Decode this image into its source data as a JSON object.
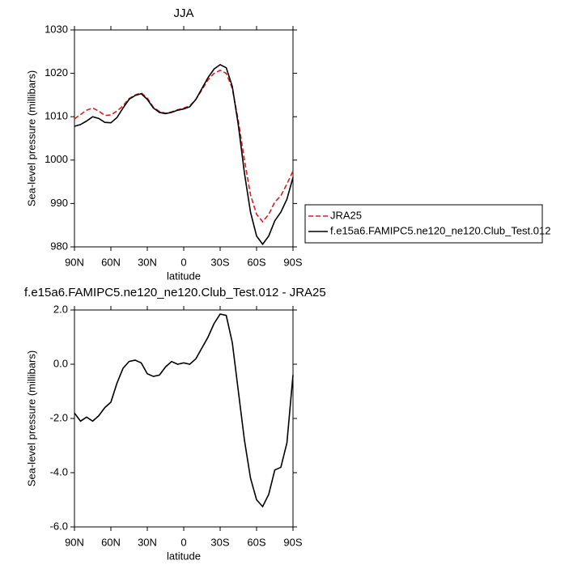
{
  "chart_data": [
    {
      "type": "line",
      "title": "JJA",
      "xlabel": "latitude",
      "ylabel": "Sea-level pressure (millibars)",
      "x": [
        90,
        85,
        80,
        75,
        70,
        65,
        60,
        55,
        50,
        45,
        40,
        35,
        30,
        25,
        20,
        15,
        10,
        5,
        0,
        -5,
        -10,
        -15,
        -20,
        -25,
        -30,
        -35,
        -40,
        -45,
        -50,
        -55,
        -60,
        -65,
        -70,
        -75,
        -80,
        -85,
        -90
      ],
      "xlim": [
        90,
        -90
      ],
      "xticks": [
        {
          "value": 90,
          "label": "90N"
        },
        {
          "value": 60,
          "label": "60N"
        },
        {
          "value": 30,
          "label": "30N"
        },
        0,
        {
          "value": -30,
          "label": "30S"
        },
        {
          "value": -60,
          "label": "60S"
        },
        {
          "value": -90,
          "label": "90S"
        }
      ],
      "ylim": [
        980,
        1030
      ],
      "yticks": [
        980,
        990,
        1000,
        1010,
        1020,
        1030
      ],
      "legend": "right",
      "series": [
        {
          "name": "JRA25",
          "color": "#e41a1c",
          "style": "dashed",
          "values": [
            1009.5,
            1010.5,
            1011.5,
            1012,
            1011.3,
            1010.3,
            1010.4,
            1011.3,
            1012.5,
            1014.2,
            1015,
            1015.5,
            1014.3,
            1012.2,
            1011.2,
            1010.8,
            1011.1,
            1011.6,
            1012,
            1012.5,
            1014,
            1016.2,
            1018.5,
            1020,
            1020.7,
            1020,
            1016.5,
            1009,
            1000,
            992,
            987.5,
            985.8,
            987.5,
            990.3,
            991.8,
            994.5,
            997.5
          ]
        },
        {
          "name": "f.e15a6.FAMIPC5.ne120_ne120.Club_Test.012",
          "color": "#000000",
          "style": "solid",
          "values": [
            1007.8,
            1008.2,
            1009,
            1010,
            1009.6,
            1008.7,
            1008.6,
            1009.8,
            1012,
            1014,
            1014.9,
            1015.3,
            1014,
            1012,
            1011,
            1010.7,
            1011,
            1011.5,
            1011.8,
            1012.3,
            1014,
            1016.5,
            1019,
            1021,
            1022,
            1021.3,
            1017,
            1008,
            997,
            988,
            982.5,
            980.6,
            982.5,
            986,
            988,
            991,
            996
          ]
        }
      ]
    },
    {
      "type": "line",
      "title": "f.e15a6.FAMIPC5.ne120_ne120.Club_Test.012 - JRA25",
      "xlabel": "latitude",
      "ylabel": "Sea-level pressure (millibars)",
      "x": [
        90,
        85,
        80,
        75,
        70,
        65,
        60,
        55,
        50,
        45,
        40,
        35,
        30,
        25,
        20,
        15,
        10,
        5,
        0,
        -5,
        -10,
        -15,
        -20,
        -25,
        -30,
        -35,
        -40,
        -45,
        -50,
        -55,
        -60,
        -65,
        -70,
        -75,
        -80,
        -85,
        -90
      ],
      "xlim": [
        90,
        -90
      ],
      "xticks": [
        {
          "value": 90,
          "label": "90N"
        },
        {
          "value": 60,
          "label": "60N"
        },
        {
          "value": 30,
          "label": "30N"
        },
        0,
        {
          "value": -30,
          "label": "30S"
        },
        {
          "value": -60,
          "label": "60S"
        },
        {
          "value": -90,
          "label": "90S"
        }
      ],
      "ylim": [
        -6,
        2
      ],
      "yticks": [
        {
          "value": -6,
          "label": "-6.0"
        },
        {
          "value": -4,
          "label": "-4.0"
        },
        {
          "value": -2,
          "label": "-2.0"
        },
        {
          "value": 0,
          "label": "0.0"
        },
        {
          "value": 2,
          "label": "2.0"
        }
      ],
      "color": "#000000",
      "values": [
        -1.8,
        -2.1,
        -1.95,
        -2.1,
        -1.9,
        -1.6,
        -1.4,
        -0.7,
        -0.15,
        0.1,
        0.15,
        0.05,
        -0.35,
        -0.45,
        -0.4,
        -0.1,
        0.1,
        0.0,
        0.05,
        0.0,
        0.2,
        0.6,
        1.0,
        1.5,
        1.85,
        1.8,
        0.8,
        -1.0,
        -2.8,
        -4.2,
        -5.0,
        -5.25,
        -4.8,
        -3.9,
        -3.8,
        -2.9,
        -0.4
      ]
    }
  ]
}
